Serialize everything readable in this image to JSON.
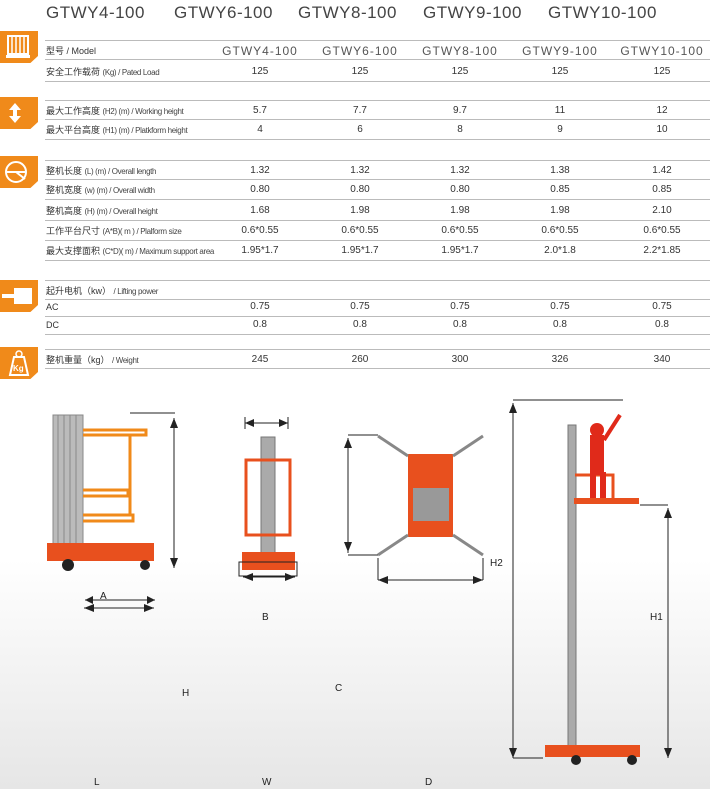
{
  "header_models": [
    "GTWY4-100",
    "GTWY6-100",
    "GTWY8-100",
    "GTWY9-100",
    "GTWY10-100"
  ],
  "table": {
    "model_label": "型号 / Model",
    "rows": [
      {
        "cn": "安全工作载荷",
        "unit": "(Kg) / Pated Load",
        "values": [
          "125",
          "125",
          "125",
          "125",
          "125"
        ]
      },
      {
        "cn": "最大工作高度",
        "unit": "(H2) (m) / Working height",
        "values": [
          "5.7",
          "7.7",
          "9.7",
          "11",
          "12"
        ]
      },
      {
        "cn": "最大平台高度",
        "unit": "(H1) (m) / Platkform height",
        "values": [
          "4",
          "6",
          "8",
          "9",
          "10"
        ]
      },
      {
        "cn": "整机长度",
        "unit": "(L) (m) / Overall length",
        "values": [
          "1.32",
          "1.32",
          "1.32",
          "1.38",
          "1.42"
        ]
      },
      {
        "cn": "整机宽度",
        "unit": "(w) (m) / Overall width",
        "values": [
          "0.80",
          "0.80",
          "0.80",
          "0.85",
          "0.85"
        ]
      },
      {
        "cn": "整机高度",
        "unit": "(H) (m) / Overall height",
        "values": [
          "1.68",
          "1.98",
          "1.98",
          "1.98",
          "2.10"
        ]
      },
      {
        "cn": "工作平台尺寸",
        "unit": "(A*B)( m ) / Plalform size",
        "values": [
          "0.6*0.55",
          "0.6*0.55",
          "0.6*0.55",
          "0.6*0.55",
          "0.6*0.55"
        ]
      },
      {
        "cn": "最大支撑面积",
        "unit": "(C*D)( m) / Maximum support area",
        "values": [
          "1.95*1.7",
          "1.95*1.7",
          "1.95*1.7",
          "2.0*1.8",
          "2.2*1.85"
        ]
      },
      {
        "cn": "起升电机（kw）",
        "unit": "/ Lifting power",
        "values": [
          "",
          "",
          "",
          "",
          ""
        ]
      },
      {
        "cn": "AC",
        "unit": "",
        "values": [
          "0.75",
          "0.75",
          "0.75",
          "0.75",
          "0.75"
        ]
      },
      {
        "cn": "DC",
        "unit": "",
        "values": [
          "0.8",
          "0.8",
          "0.8",
          "0.8",
          "0.8"
        ]
      },
      {
        "cn": "整机重量（kg）",
        "unit": "/ Weight",
        "values": [
          "245",
          "260",
          "300",
          "326",
          "340"
        ]
      }
    ]
  },
  "icons": [
    "load-icon",
    "height-icon",
    "dimension-icon",
    "motor-icon",
    "weight-kg-icon"
  ],
  "icon_kg_text": "Kg",
  "diagram_labels": {
    "A": "A",
    "H": "H",
    "L": "L",
    "B": "B",
    "W": "W",
    "C": "C",
    "D": "D",
    "H2": "H2",
    "H1": "H1"
  },
  "colors": {
    "accent": "#f08a1a",
    "machine": "#e8501e"
  }
}
